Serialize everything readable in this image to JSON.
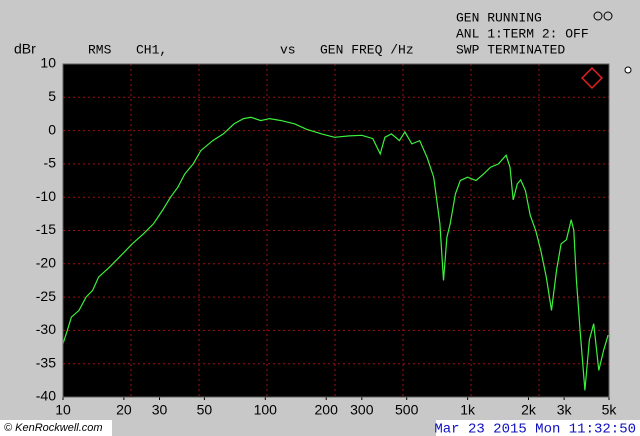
{
  "chart_data": {
    "type": "line",
    "y_label": "dBr",
    "trace_info": [
      "RMS",
      "CH1,",
      "vs",
      "GEN FREQ /Hz"
    ],
    "status_lines": [
      "GEN RUNNING",
      "ANL 1:TERM 2: OFF",
      "SWP TERMINATED"
    ],
    "timestamp": "Mar 23 2015 Mon 11:32:50",
    "watermark": "© KenRockwell.com",
    "xscale": "log",
    "grid": true,
    "xlim": [
      10,
      5000
    ],
    "ylim": [
      -40,
      10
    ],
    "xticks": [
      10,
      20,
      30,
      50,
      100,
      200,
      300,
      500,
      {
        "value": 1000,
        "label": "1k"
      },
      {
        "value": 2000,
        "label": "2k"
      },
      {
        "value": 3000,
        "label": "3k"
      },
      {
        "value": 5000,
        "label": "5k"
      }
    ],
    "yticks": [
      10,
      5,
      0,
      -5,
      -10,
      -15,
      -20,
      -25,
      -30,
      -35,
      -40
    ],
    "x": [
      10,
      10.5,
      11,
      12,
      13,
      14,
      15,
      17,
      19,
      22,
      25,
      28,
      31,
      34,
      37,
      40,
      44,
      48,
      55,
      62,
      70,
      78,
      85,
      95,
      105,
      120,
      140,
      160,
      190,
      220,
      260,
      300,
      340,
      370,
      390,
      420,
      460,
      490,
      530,
      580,
      630,
      680,
      730,
      760,
      790,
      820,
      870,
      920,
      1000,
      1100,
      1200,
      1300,
      1420,
      1550,
      1620,
      1680,
      1760,
      1830,
      1930,
      2040,
      2170,
      2300,
      2450,
      2600,
      2750,
      2900,
      3080,
      3250,
      3350,
      3450,
      3600,
      3800,
      4000,
      4200,
      4450,
      4700,
      4950
    ],
    "series": [
      {
        "name": "CH1",
        "color": "#3cf03c",
        "values": [
          -32,
          -30,
          -28,
          -27,
          -25,
          -24,
          -22,
          -20.5,
          -19,
          -17,
          -15.5,
          -14,
          -12,
          -10,
          -8.5,
          -6.5,
          -5,
          -3,
          -1.5,
          -0.5,
          1,
          1.8,
          2,
          1.5,
          1.8,
          1.5,
          1,
          0.2,
          -0.5,
          -1,
          -0.8,
          -0.7,
          -1.2,
          -3.5,
          -1,
          -0.5,
          -1.5,
          -0.2,
          -2,
          -1.5,
          -4,
          -7,
          -14,
          -22.5,
          -16,
          -14,
          -9.5,
          -7.5,
          -7,
          -7.5,
          -6.5,
          -5.5,
          -5,
          -3.7,
          -5.5,
          -10.4,
          -8,
          -7.4,
          -9,
          -12.7,
          -15,
          -18,
          -22,
          -27,
          -21,
          -17,
          -16.4,
          -13.4,
          -15,
          -22.4,
          -30,
          -39,
          -31.4,
          -29,
          -36,
          -33,
          -30.7
        ]
      }
    ]
  }
}
